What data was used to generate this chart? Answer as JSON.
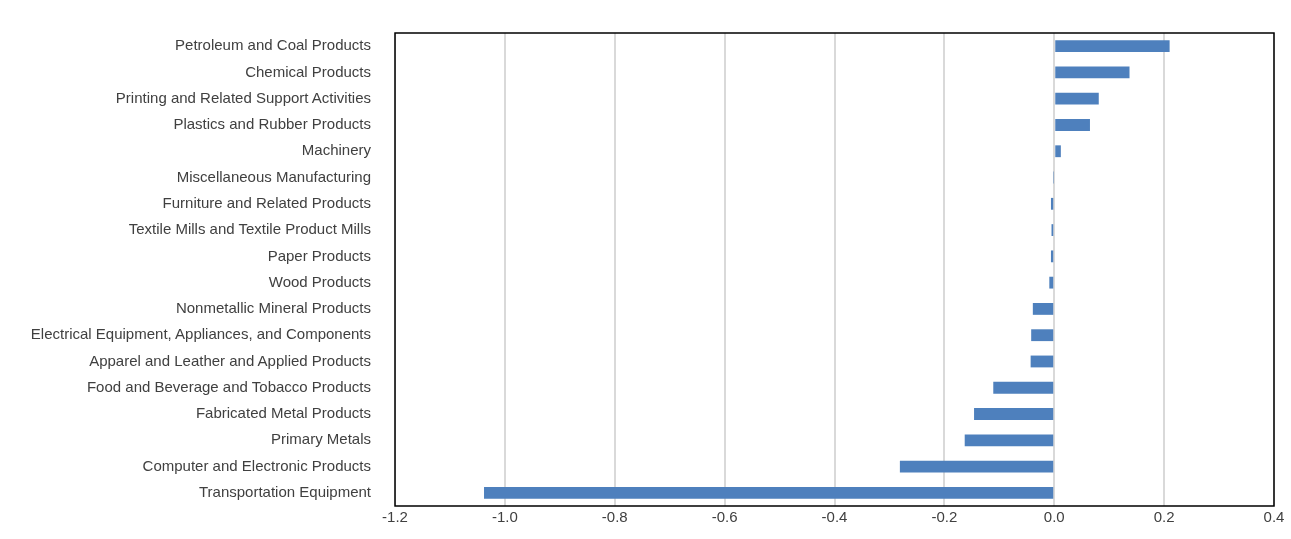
{
  "chart_data": {
    "type": "bar",
    "orientation": "horizontal",
    "categories": [
      "Petroleum and Coal Products",
      "Chemical Products",
      "Printing and Related Support Activities",
      "Plastics and Rubber Products",
      "Machinery",
      "Miscellaneous Manufacturing",
      "Furniture and Related Products",
      "Textile Mills and Textile Product Mills",
      "Paper Products",
      "Wood Products",
      "Nonmetallic Mineral Products",
      "Electrical Equipment, Appliances, and Components",
      "Apparel and Leather and Applied Products",
      "Food and Beverage and Tobacco Products",
      "Fabricated Metal Products",
      "Primary Metals",
      "Computer and Electronic Products",
      "Transportation Equipment"
    ],
    "values": [
      0.21,
      0.137,
      0.081,
      0.065,
      0.012,
      -0.001,
      -0.006,
      -0.005,
      -0.006,
      -0.009,
      -0.039,
      -0.042,
      -0.043,
      -0.111,
      -0.146,
      -0.163,
      -0.281,
      -1.038
    ],
    "color": "#4e80bd",
    "xlim": [
      -1.2,
      0.4
    ],
    "xticks": [
      {
        "value": -1.2,
        "label": "-1.2"
      },
      {
        "value": -1.0,
        "label": "-1.0"
      },
      {
        "value": -0.8,
        "label": "-0.8"
      },
      {
        "value": -0.6,
        "label": "-0.6"
      },
      {
        "value": -0.4,
        "label": "-0.4"
      },
      {
        "value": -0.2,
        "label": "-0.2"
      },
      {
        "value": 0,
        "label": "0.0"
      },
      {
        "value": 0.2,
        "label": "0.2"
      },
      {
        "value": 0.4,
        "label": "0.4"
      }
    ],
    "grid": "x",
    "legend": false
  }
}
